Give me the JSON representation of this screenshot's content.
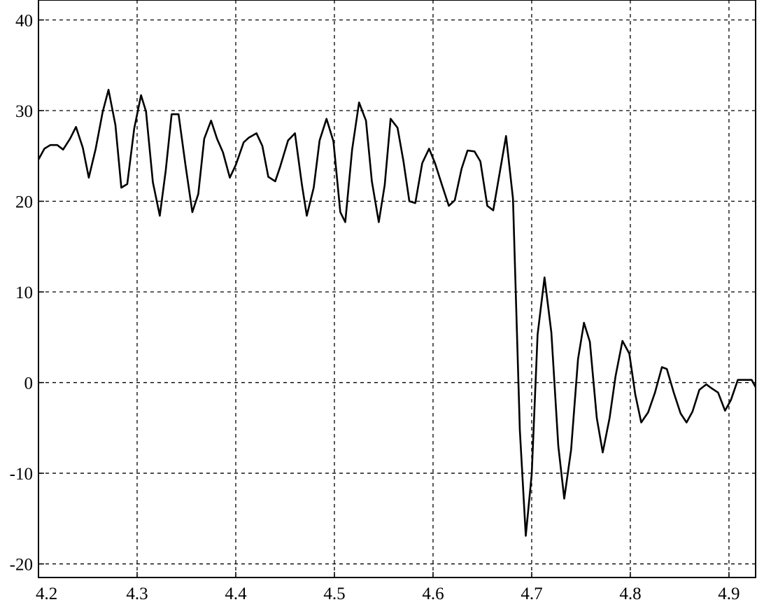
{
  "chart_data": {
    "type": "line",
    "title": "",
    "xlabel": "",
    "ylabel": "",
    "xlim": [
      4.2,
      4.927
    ],
    "ylim": [
      -21.5,
      42.2
    ],
    "grid": true,
    "x_ticks": [
      "4.2",
      "4.3",
      "4.4",
      "4.5",
      "4.6",
      "4.7",
      "4.8",
      "4.9"
    ],
    "y_ticks": [
      "40",
      "30",
      "20",
      "10",
      "0",
      "-10",
      "-20"
    ],
    "line_color": "#000000",
    "series": [
      {
        "x": [
          4.2,
          4.206,
          4.212,
          4.219,
          4.225,
          4.232,
          4.238,
          4.245,
          4.251,
          4.258,
          4.265,
          4.271,
          4.278,
          4.284,
          4.29,
          4.297,
          4.304,
          4.309,
          4.316,
          4.323,
          4.329,
          4.335,
          4.342,
          4.349,
          4.356,
          4.362,
          4.368,
          4.375,
          4.381,
          4.387,
          4.394,
          4.4,
          4.408,
          4.413,
          4.421,
          4.427,
          4.433,
          4.44,
          4.445,
          4.453,
          4.46,
          4.467,
          4.472,
          4.479,
          4.485,
          4.492,
          4.499,
          4.506,
          4.511,
          4.518,
          4.525,
          4.532,
          4.538,
          4.545,
          4.551,
          4.557,
          4.564,
          4.57,
          4.576,
          4.582,
          4.589,
          4.596,
          4.602,
          4.609,
          4.616,
          4.622,
          4.629,
          4.635,
          4.642,
          4.648,
          4.655,
          4.661,
          4.668,
          4.674,
          4.681,
          4.688,
          4.694,
          4.7,
          4.706,
          4.713,
          4.72,
          4.727,
          4.733,
          4.74,
          4.747,
          4.753,
          4.759,
          4.766,
          4.772,
          4.779,
          4.785,
          4.792,
          4.799,
          4.805,
          4.811,
          4.818,
          4.825,
          4.832,
          4.837,
          4.844,
          4.851,
          4.857,
          4.863,
          4.87,
          4.877,
          4.882,
          4.889,
          4.896,
          4.902,
          4.909,
          4.923,
          4.927
        ],
        "y": [
          24.6,
          25.8,
          26.2,
          26.2,
          25.7,
          26.9,
          28.2,
          25.9,
          22.6,
          25.8,
          29.8,
          32.3,
          28.4,
          21.5,
          21.9,
          28.0,
          31.7,
          29.9,
          22.1,
          18.4,
          23.4,
          29.6,
          29.6,
          24.0,
          18.8,
          20.8,
          26.9,
          28.9,
          26.9,
          25.4,
          22.6,
          24.0,
          26.5,
          27.0,
          27.5,
          26.1,
          22.7,
          22.2,
          23.8,
          26.7,
          27.5,
          21.9,
          18.4,
          21.5,
          26.7,
          29.1,
          26.6,
          18.8,
          17.7,
          25.7,
          30.9,
          28.9,
          22.2,
          17.7,
          21.8,
          29.1,
          28.1,
          24.4,
          20.0,
          19.8,
          24.2,
          25.8,
          24.2,
          21.8,
          19.5,
          20.1,
          23.6,
          25.6,
          25.5,
          24.4,
          19.5,
          19.0,
          23.4,
          27.2,
          20.3,
          -5.2,
          -16.9,
          -10.1,
          5.3,
          11.6,
          5.5,
          -7.0,
          -12.8,
          -7.4,
          2.6,
          6.6,
          4.5,
          -3.9,
          -7.7,
          -3.9,
          0.7,
          4.6,
          3.2,
          -1.3,
          -4.4,
          -3.3,
          -1.1,
          1.7,
          1.5,
          -1.1,
          -3.4,
          -4.4,
          -3.2,
          -0.8,
          -0.2,
          -0.6,
          -1.1,
          -3.1,
          -1.9,
          0.3,
          0.3,
          -0.5
        ]
      }
    ]
  }
}
